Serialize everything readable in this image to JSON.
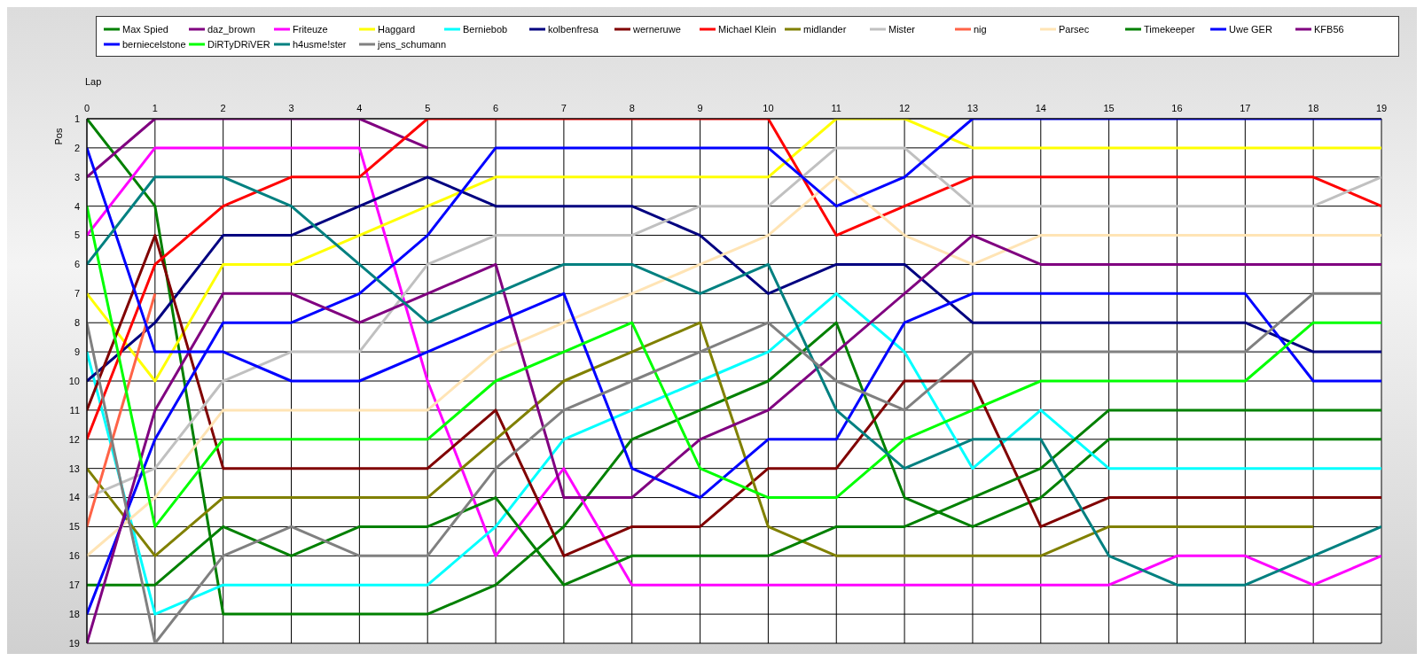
{
  "chart_data": {
    "type": "line",
    "xlabel": "Lap",
    "ylabel": "Pos",
    "x": [
      0,
      1,
      2,
      3,
      4,
      5,
      6,
      7,
      8,
      9,
      10,
      11,
      12,
      13,
      14,
      15,
      16,
      17,
      18,
      19
    ],
    "xlim": [
      0,
      19
    ],
    "xticks": [
      0,
      1,
      2,
      3,
      4,
      5,
      6,
      7,
      8,
      9,
      10,
      11,
      12,
      13,
      14,
      15,
      16,
      17,
      18,
      19
    ],
    "ylim": [
      19,
      1
    ],
    "yticks": [
      1,
      2,
      3,
      4,
      5,
      6,
      7,
      8,
      9,
      10,
      11,
      12,
      13,
      14,
      15,
      16,
      17,
      18,
      19
    ],
    "grid": true,
    "legend": "top",
    "marker": "none",
    "line_style": "solid",
    "series": [
      {
        "name": "Max Spied",
        "color": "#008000",
        "values": [
          1,
          4,
          18,
          18,
          18,
          18,
          17,
          15,
          12,
          11,
          10,
          8,
          14,
          15,
          14,
          12,
          12,
          12,
          12,
          12
        ]
      },
      {
        "name": "daz_brown",
        "color": "#800080",
        "values": [
          3,
          1,
          1,
          1,
          1,
          2,
          null,
          null,
          null,
          null,
          null,
          null,
          null,
          null,
          null,
          null,
          null,
          null,
          null,
          null
        ]
      },
      {
        "name": "Friteuze",
        "color": "#ff00ff",
        "values": [
          5,
          2,
          2,
          2,
          2,
          10,
          16,
          13,
          17,
          17,
          17,
          17,
          17,
          17,
          17,
          17,
          16,
          16,
          17,
          16
        ]
      },
      {
        "name": "Haggard",
        "color": "#ffff00",
        "values": [
          7,
          10,
          6,
          6,
          5,
          4,
          3,
          3,
          3,
          3,
          3,
          1,
          1,
          2,
          2,
          2,
          2,
          2,
          2,
          2
        ]
      },
      {
        "name": "Berniebob",
        "color": "#00ffff",
        "values": [
          9,
          18,
          17,
          17,
          17,
          17,
          15,
          12,
          11,
          10,
          9,
          7,
          9,
          13,
          11,
          13,
          13,
          13,
          13,
          13
        ]
      },
      {
        "name": "kolbenfresa",
        "color": "#000080",
        "values": [
          10,
          8,
          5,
          5,
          4,
          3,
          4,
          4,
          4,
          5,
          7,
          6,
          6,
          8,
          8,
          8,
          8,
          8,
          9,
          9
        ]
      },
      {
        "name": "werneruwe",
        "color": "#800000",
        "values": [
          11,
          5,
          13,
          13,
          13,
          13,
          11,
          16,
          15,
          15,
          13,
          13,
          10,
          10,
          15,
          14,
          14,
          14,
          14,
          14
        ]
      },
      {
        "name": "Michael Klein",
        "color": "#ff0000",
        "values": [
          12,
          6,
          4,
          3,
          3,
          1,
          1,
          1,
          1,
          1,
          1,
          5,
          4,
          3,
          3,
          3,
          3,
          3,
          3,
          4
        ]
      },
      {
        "name": "midlander",
        "color": "#808000",
        "values": [
          13,
          16,
          14,
          14,
          14,
          14,
          12,
          10,
          9,
          8,
          15,
          16,
          16,
          16,
          16,
          15,
          15,
          15,
          15,
          null
        ]
      },
      {
        "name": "Mister",
        "color": "#c0c0c0",
        "values": [
          14,
          13,
          10,
          9,
          9,
          6,
          5,
          5,
          5,
          4,
          4,
          2,
          2,
          4,
          4,
          4,
          4,
          4,
          4,
          3
        ]
      },
      {
        "name": "nig",
        "color": "#ff6347",
        "values": [
          15,
          7,
          null,
          null,
          null,
          null,
          null,
          null,
          null,
          null,
          null,
          null,
          null,
          null,
          null,
          null,
          null,
          null,
          null,
          null
        ]
      },
      {
        "name": "Parsec",
        "color": "#ffe4b5",
        "values": [
          16,
          14,
          11,
          11,
          11,
          11,
          9,
          8,
          7,
          6,
          5,
          3,
          5,
          6,
          5,
          5,
          5,
          5,
          5,
          5
        ]
      },
      {
        "name": "Timekeeper",
        "color": "#008000",
        "values": [
          17,
          17,
          15,
          16,
          15,
          15,
          14,
          17,
          16,
          16,
          16,
          15,
          15,
          14,
          13,
          11,
          11,
          11,
          11,
          11
        ]
      },
      {
        "name": "Uwe GER",
        "color": "#0000ff",
        "values": [
          18,
          12,
          8,
          8,
          7,
          5,
          2,
          2,
          2,
          2,
          2,
          4,
          3,
          1,
          1,
          1,
          1,
          1,
          1,
          1
        ]
      },
      {
        "name": "KFB56",
        "color": "#800080",
        "values": [
          19,
          11,
          7,
          7,
          8,
          7,
          6,
          14,
          14,
          12,
          11,
          9,
          7,
          5,
          6,
          6,
          6,
          6,
          6,
          6
        ]
      },
      {
        "name": "berniecelstone",
        "color": "#0000ff",
        "values": [
          2,
          9,
          9,
          10,
          10,
          9,
          8,
          7,
          13,
          14,
          12,
          12,
          8,
          7,
          7,
          7,
          7,
          7,
          10,
          10
        ]
      },
      {
        "name": "DiRTyDRiVER",
        "color": "#00ff00",
        "values": [
          4,
          15,
          12,
          12,
          12,
          12,
          10,
          9,
          8,
          13,
          14,
          14,
          12,
          11,
          10,
          10,
          10,
          10,
          8,
          8
        ]
      },
      {
        "name": "h4usme!ster",
        "color": "#008080",
        "values": [
          6,
          3,
          3,
          4,
          6,
          8,
          7,
          6,
          6,
          7,
          6,
          11,
          13,
          12,
          12,
          16,
          17,
          17,
          16,
          15
        ]
      },
      {
        "name": "jens_schumann",
        "color": "#808080",
        "values": [
          8,
          19,
          16,
          15,
          16,
          16,
          13,
          11,
          10,
          9,
          8,
          10,
          11,
          9,
          9,
          9,
          9,
          9,
          7,
          7
        ]
      }
    ]
  }
}
